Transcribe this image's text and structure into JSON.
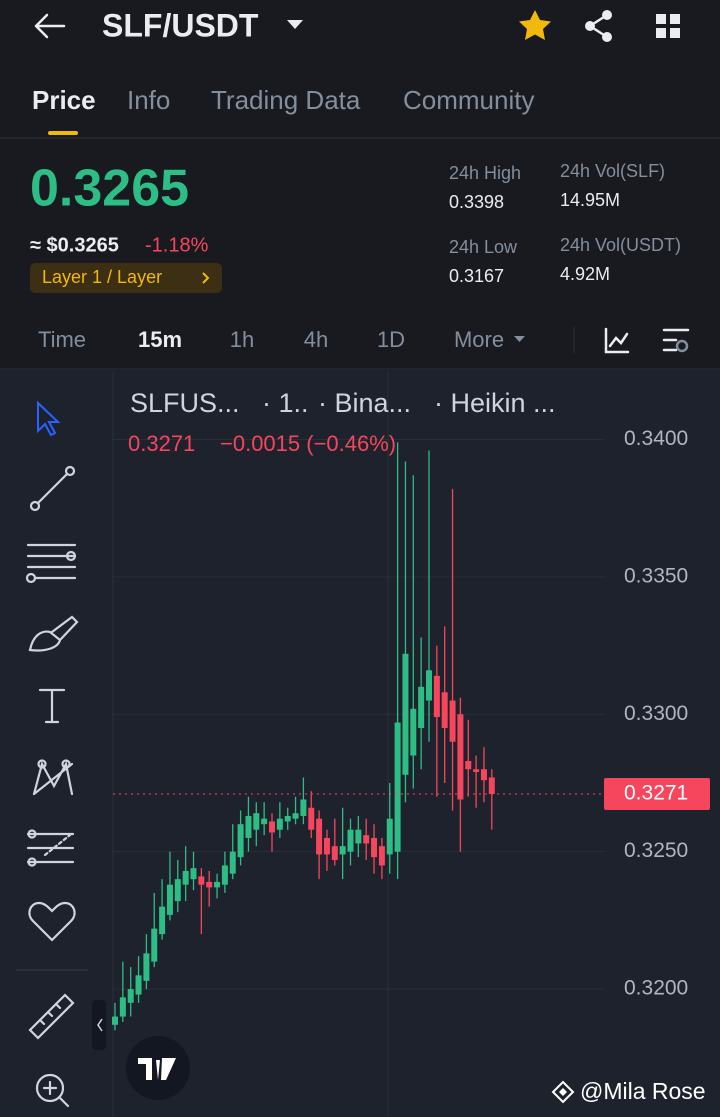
{
  "header": {
    "pair": "SLF/USDT"
  },
  "tabs": [
    "Price",
    "Info",
    "Trading Data",
    "Community"
  ],
  "price": {
    "last": "0.3265",
    "usd": "≈ $0.3265",
    "change": "-1.18%",
    "tag": "Layer 1 / Layer"
  },
  "stats": [
    {
      "label": "24h High",
      "value": "0.3398"
    },
    {
      "label": "24h Vol(SLF)",
      "value": "14.95M"
    },
    {
      "label": "24h Low",
      "value": "0.3167"
    },
    {
      "label": "24h Vol(USDT)",
      "value": "4.92M"
    }
  ],
  "timeframes": [
    "Time",
    "15m",
    "1h",
    "4h",
    "1D",
    "More"
  ],
  "chart_data": {
    "type": "candlestick",
    "title": "SLFUS...",
    "legend": [
      "· 1..",
      "· Bina...",
      "· Heikin ..."
    ],
    "change_label": "−0.0015 (−0.46%)",
    "last_price": 0.3271,
    "up_color": "#2ebd85",
    "down_color": "#f6465d",
    "ylim": [
      0.3156,
      0.3418
    ],
    "yticks": [
      {
        "value": 0.32,
        "label": "0.3200"
      },
      {
        "value": 0.325,
        "label": "0.3250"
      },
      {
        "value": 0.33,
        "label": "0.3300"
      },
      {
        "value": 0.335,
        "label": "0.3350"
      },
      {
        "value": 0.34,
        "label": "0.3400"
      }
    ],
    "grid": true,
    "open": [
      0.3187,
      0.319,
      0.3195,
      0.3198,
      0.3203,
      0.321,
      0.322,
      0.3227,
      0.3232,
      0.3238,
      0.324,
      0.3241,
      0.3239,
      0.3237,
      0.3238,
      0.3242,
      0.3248,
      0.3255,
      0.3258,
      0.326,
      0.3261,
      0.3258,
      0.3261,
      0.3262,
      0.3263,
      0.3266,
      0.3262,
      0.3255,
      0.3252,
      0.3249,
      0.325,
      0.3253,
      0.3256,
      0.3255,
      0.3252,
      0.3249,
      0.325,
      0.3278,
      0.3285,
      0.3295,
      0.3305,
      0.3314,
      0.3308,
      0.3305,
      0.33,
      0.3283,
      0.328,
      0.328,
      0.3277
    ],
    "high": [
      0.3195,
      0.321,
      0.3208,
      0.3212,
      0.322,
      0.3235,
      0.324,
      0.325,
      0.3247,
      0.3252,
      0.325,
      0.3244,
      0.3243,
      0.3242,
      0.325,
      0.326,
      0.3265,
      0.327,
      0.3268,
      0.3268,
      0.3264,
      0.3268,
      0.3266,
      0.327,
      0.3277,
      0.3272,
      0.3265,
      0.3258,
      0.3262,
      0.3266,
      0.3262,
      0.3263,
      0.3262,
      0.326,
      0.3255,
      0.3275,
      0.3399,
      0.3392,
      0.3387,
      0.3328,
      0.3396,
      0.3325,
      0.3332,
      0.3382,
      0.3306,
      0.3298,
      0.3285,
      0.3288,
      0.328
    ],
    "low": [
      0.3185,
      0.3188,
      0.319,
      0.3195,
      0.32,
      0.3208,
      0.3218,
      0.3225,
      0.3228,
      0.3232,
      0.3236,
      0.322,
      0.323,
      0.3233,
      0.3235,
      0.324,
      0.3245,
      0.325,
      0.3252,
      0.3256,
      0.325,
      0.3255,
      0.3258,
      0.326,
      0.326,
      0.3255,
      0.324,
      0.3243,
      0.3245,
      0.324,
      0.3245,
      0.3248,
      0.3247,
      0.3242,
      0.324,
      0.3242,
      0.324,
      0.3268,
      0.3273,
      0.328,
      0.329,
      0.327,
      0.3275,
      0.3265,
      0.325,
      0.327,
      0.3266,
      0.3268,
      0.3258
    ],
    "close": [
      0.319,
      0.3197,
      0.32,
      0.3205,
      0.3213,
      0.3222,
      0.323,
      0.3238,
      0.324,
      0.3243,
      0.3244,
      0.3238,
      0.3237,
      0.3239,
      0.3245,
      0.325,
      0.326,
      0.3263,
      0.3264,
      0.3262,
      0.3257,
      0.3262,
      0.3263,
      0.3264,
      0.3269,
      0.3258,
      0.3249,
      0.3249,
      0.3247,
      0.3252,
      0.3258,
      0.3258,
      0.3253,
      0.3248,
      0.3245,
      0.3262,
      0.3297,
      0.3322,
      0.3302,
      0.331,
      0.3316,
      0.3299,
      0.3295,
      0.329,
      0.3269,
      0.328,
      0.3279,
      0.3276,
      0.3271
    ]
  },
  "watermark": "@Mila Rose"
}
